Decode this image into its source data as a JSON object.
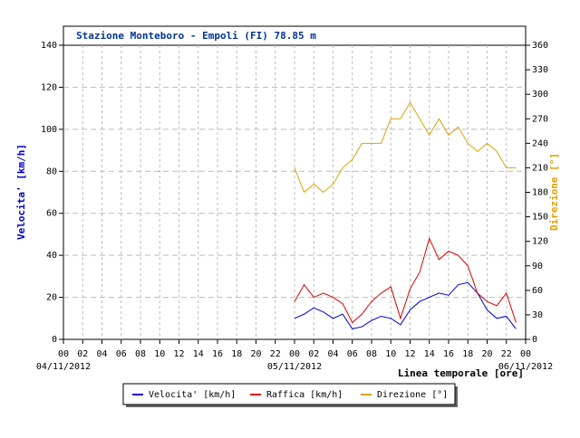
{
  "chart_data": {
    "type": "line",
    "title": "Stazione Monteboro - Empoli (FI) 78.85 m",
    "ylabel": "Velocita' [km/h]",
    "y2label": "Direzione [°]",
    "xlabel": "Linea temporale [ore]",
    "xlim": [
      0,
      48
    ],
    "xticks": [
      {
        "value": 0,
        "label": "00"
      },
      {
        "value": 2,
        "label": "02"
      },
      {
        "value": 4,
        "label": "04"
      },
      {
        "value": 6,
        "label": "06"
      },
      {
        "value": 8,
        "label": "08"
      },
      {
        "value": 10,
        "label": "10"
      },
      {
        "value": 12,
        "label": "12"
      },
      {
        "value": 14,
        "label": "14"
      },
      {
        "value": 16,
        "label": "16"
      },
      {
        "value": 18,
        "label": "18"
      },
      {
        "value": 20,
        "label": "20"
      },
      {
        "value": 22,
        "label": "22"
      },
      {
        "value": 24,
        "label": "00"
      },
      {
        "value": 26,
        "label": "02"
      },
      {
        "value": 28,
        "label": "04"
      },
      {
        "value": 30,
        "label": "06"
      },
      {
        "value": 32,
        "label": "08"
      },
      {
        "value": 34,
        "label": "10"
      },
      {
        "value": 36,
        "label": "12"
      },
      {
        "value": 38,
        "label": "14"
      },
      {
        "value": 40,
        "label": "16"
      },
      {
        "value": 42,
        "label": "18"
      },
      {
        "value": 44,
        "label": "20"
      },
      {
        "value": 46,
        "label": "22"
      },
      {
        "value": 48,
        "label": "00"
      }
    ],
    "date_labels": [
      {
        "value": 0,
        "label": "04/11/2012"
      },
      {
        "value": 24,
        "label": "05/11/2012"
      },
      {
        "value": 48,
        "label": "06/11/2012"
      }
    ],
    "ylim": [
      0,
      140
    ],
    "yticks": [
      0,
      20,
      40,
      60,
      80,
      100,
      120,
      140
    ],
    "y2lim": [
      0,
      360
    ],
    "y2ticks": [
      0,
      30,
      60,
      90,
      120,
      150,
      180,
      210,
      240,
      270,
      300,
      330,
      360
    ],
    "grid": true,
    "x": [
      24,
      25,
      26,
      27,
      28,
      29,
      30,
      31,
      32,
      33,
      34,
      35,
      36,
      37,
      38,
      39,
      40,
      41,
      42,
      43,
      44,
      45,
      46,
      47
    ],
    "series": [
      {
        "name": "Velocita' [km/h]",
        "color": "#0000cc",
        "values": [
          10,
          12,
          15,
          13,
          10,
          12,
          5,
          6,
          9,
          11,
          10,
          7,
          14,
          18,
          20,
          22,
          21,
          26,
          27,
          22,
          14,
          10,
          11,
          5
        ]
      },
      {
        "name": "Raffica [km/h]",
        "color": "#dd0000",
        "values": [
          18,
          26,
          20,
          22,
          20,
          17,
          8,
          12,
          18,
          22,
          25,
          10,
          24,
          32,
          48,
          38,
          42,
          40,
          35,
          22,
          18,
          16,
          22,
          8
        ]
      },
      {
        "name": "Direzione [°]",
        "color": "#e0a000",
        "axis": "y2",
        "values": [
          210,
          180,
          190,
          180,
          190,
          210,
          220,
          240,
          240,
          240,
          270,
          270,
          290,
          270,
          250,
          270,
          250,
          260,
          240,
          230,
          240,
          230,
          210,
          210
        ]
      }
    ]
  }
}
